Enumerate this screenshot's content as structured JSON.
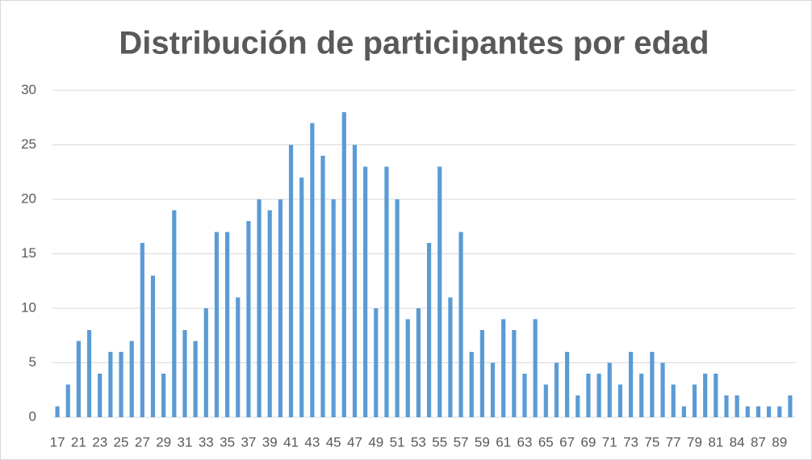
{
  "chart_data": {
    "type": "bar",
    "title": "Distribución de participantes por edad",
    "categories": [
      "17",
      null,
      "21",
      null,
      "23",
      null,
      "25",
      null,
      "27",
      null,
      "29",
      null,
      "31",
      null,
      "33",
      null,
      "35",
      null,
      "37",
      null,
      "39",
      null,
      "41",
      null,
      "43",
      null,
      "45",
      null,
      "47",
      null,
      "49",
      null,
      "51",
      null,
      "53",
      null,
      "55",
      null,
      "57",
      null,
      "59",
      null,
      "61",
      null,
      "63",
      null,
      "65",
      null,
      "67",
      null,
      "69",
      null,
      "71",
      null,
      "73",
      null,
      "75",
      null,
      "77",
      null,
      "79",
      null,
      "81",
      null,
      "84",
      null,
      "87",
      null,
      "89",
      null
    ],
    "values": [
      1,
      3,
      7,
      8,
      4,
      6,
      6,
      7,
      16,
      13,
      4,
      19,
      8,
      7,
      10,
      17,
      17,
      11,
      18,
      20,
      19,
      20,
      25,
      22,
      27,
      24,
      20,
      28,
      25,
      23,
      10,
      23,
      20,
      9,
      10,
      16,
      23,
      11,
      17,
      6,
      8,
      5,
      9,
      8,
      4,
      9,
      3,
      5,
      6,
      2,
      4,
      4,
      5,
      3,
      6,
      4,
      6,
      5,
      3,
      1,
      3,
      4,
      4,
      2,
      2,
      1,
      1,
      1,
      1,
      2
    ],
    "color": "#5b9bd5",
    "ylim": [
      0,
      30
    ],
    "yticks": [
      0,
      5,
      10,
      15,
      20,
      25,
      30
    ],
    "grid": true
  }
}
